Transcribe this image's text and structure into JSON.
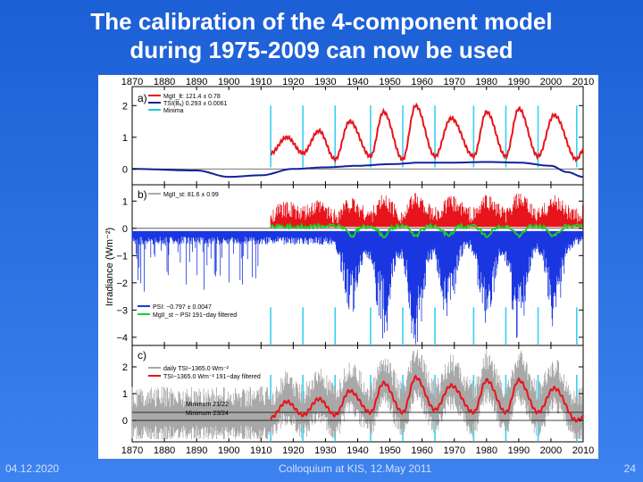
{
  "slide": {
    "title_line1": "The calibration of the 4-component model",
    "title_line2": "during 1975-2009 can now be used",
    "footer_date": "04.12.2020",
    "footer_center": "Colloquium at KIS, 12.May 2011",
    "page_number": "24",
    "colors": {
      "red": "#e8141b",
      "blue": "#1a36e0",
      "dark_blue": "#12229a",
      "cyan": "#18c8ec",
      "green": "#22cc22",
      "gray": "#a8a8a8"
    }
  },
  "chart_data": [
    {
      "type": "line",
      "panel": "a)",
      "x_ticks": [
        "1870",
        "1880",
        "1890",
        "1900",
        "1910",
        "1920",
        "1930",
        "1940",
        "1950",
        "1960",
        "1970",
        "1980",
        "1990",
        "2000",
        "2010"
      ],
      "xlim": [
        1870,
        2010
      ],
      "ylim": [
        -0.5,
        2.6
      ],
      "y_ticks": [
        "2",
        "1",
        "0"
      ],
      "legend": [
        "MgII_lt: 121.4 ± 0.78",
        "TSI(Bₐ) 0.293 ± 0.0061",
        "Minima"
      ],
      "minima_years": [
        1913,
        1923,
        1933,
        1944,
        1954,
        1964,
        1976,
        1986,
        1996,
        2008
      ],
      "series": [
        {
          "name": "MgII_lt",
          "color": "red",
          "x": [
            1913,
            1918,
            1923,
            1928,
            1933,
            1937.5,
            1944,
            1948,
            1954,
            1958,
            1964,
            1969,
            1976,
            1980,
            1986,
            1990,
            1996,
            2001,
            2008,
            2010
          ],
          "y": [
            0.5,
            1.0,
            0.5,
            1.2,
            0.3,
            1.5,
            0.4,
            1.8,
            0.3,
            2.0,
            0.4,
            1.6,
            0.4,
            1.8,
            0.4,
            1.9,
            0.4,
            1.7,
            0.3,
            0.6
          ]
        },
        {
          "name": "TSI(Bₐ)",
          "color": "dark_blue",
          "x": [
            1870,
            1890,
            1900,
            1910,
            1920,
            1930,
            1940,
            1950,
            1960,
            1970,
            1980,
            1990,
            2000,
            2005,
            2010
          ],
          "y": [
            0.0,
            -0.05,
            -0.25,
            -0.2,
            0.0,
            0.05,
            0.1,
            0.15,
            0.2,
            0.2,
            0.22,
            0.2,
            0.1,
            -0.1,
            -0.25
          ]
        }
      ]
    },
    {
      "type": "line",
      "panel": "b)",
      "ylabel": "Irradiance (Wm⁻²)",
      "ylim": [
        -4.3,
        1.6
      ],
      "y_ticks": [
        "1",
        "0",
        "−1",
        "−2",
        "−3",
        "−4"
      ],
      "legend": [
        "MgII_st: 81.6 ± 0.99",
        "PSI: −0.797 ± 0.0047",
        "MgII_st − PSI 191−day filtered"
      ],
      "series": [
        {
          "name": "PSI",
          "color": "blue",
          "baseline": -0.1,
          "trough_years": [
            1938,
            1948,
            1958,
            1968,
            1980,
            1990,
            2001
          ],
          "trough_depth": [
            -2.5,
            -3.5,
            -4.0,
            -2.8,
            -3.0,
            -3.5,
            -3.0
          ]
        },
        {
          "name": "MgII_st",
          "color": "red",
          "baseline": 0.3,
          "range": [
            0.0,
            1.3
          ]
        },
        {
          "name": "MgII_st − PSI 191−day filtered",
          "color": "green",
          "baseline": 0.1,
          "range": [
            -0.4,
            0.3
          ]
        }
      ]
    },
    {
      "type": "line",
      "panel": "c)",
      "ylim": [
        -0.8,
        2.8
      ],
      "y_ticks": [
        "2",
        "1",
        "0"
      ],
      "legend": [
        "daily TSI−1365.0 Wm⁻²",
        "TSI−1365.0 Wm⁻² 191−day filtered"
      ],
      "hlines": [
        {
          "label": "Minimum 21/22",
          "y": 0.3
        },
        {
          "label": "Minimum 23/24",
          "y": 0.0
        }
      ],
      "series": [
        {
          "name": "TSI 191−day filtered",
          "color": "red",
          "x": [
            1913,
            1918,
            1923,
            1928,
            1933,
            1937.5,
            1944,
            1948,
            1954,
            1958,
            1964,
            1969,
            1976,
            1980,
            1986,
            1990,
            1996,
            2001,
            2008,
            2010
          ],
          "y": [
            0.1,
            0.7,
            0.2,
            0.8,
            0.2,
            1.1,
            0.3,
            1.4,
            0.3,
            1.6,
            0.4,
            1.3,
            0.3,
            1.5,
            0.3,
            1.5,
            0.3,
            1.2,
            0.0,
            0.1
          ]
        }
      ]
    }
  ]
}
